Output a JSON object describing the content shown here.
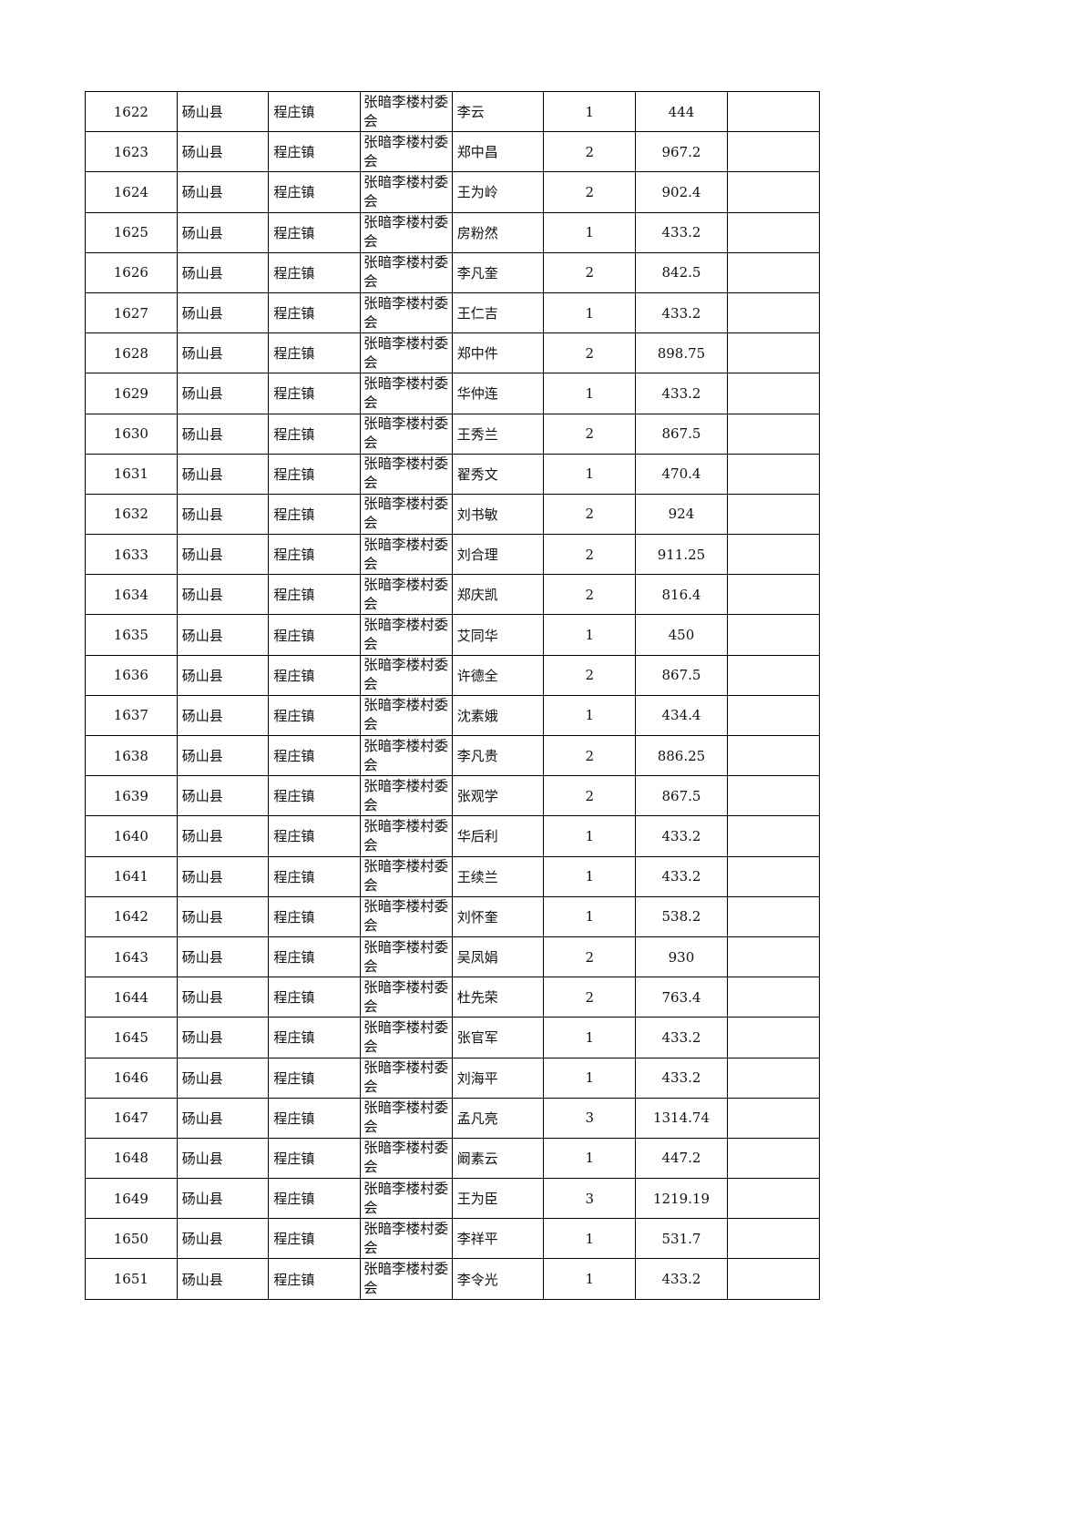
{
  "table": {
    "rows": [
      {
        "no": "1622",
        "county": "砀山县",
        "town": "程庄镇",
        "village": "张暗李楼村委会",
        "name": "李云",
        "count": "1",
        "amount": "444",
        "note": ""
      },
      {
        "no": "1623",
        "county": "砀山县",
        "town": "程庄镇",
        "village": "张暗李楼村委会",
        "name": "郑中昌",
        "count": "2",
        "amount": "967.2",
        "note": ""
      },
      {
        "no": "1624",
        "county": "砀山县",
        "town": "程庄镇",
        "village": "张暗李楼村委会",
        "name": "王为岭",
        "count": "2",
        "amount": "902.4",
        "note": ""
      },
      {
        "no": "1625",
        "county": "砀山县",
        "town": "程庄镇",
        "village": "张暗李楼村委会",
        "name": "房粉然",
        "count": "1",
        "amount": "433.2",
        "note": ""
      },
      {
        "no": "1626",
        "county": "砀山县",
        "town": "程庄镇",
        "village": "张暗李楼村委会",
        "name": "李凡奎",
        "count": "2",
        "amount": "842.5",
        "note": ""
      },
      {
        "no": "1627",
        "county": "砀山县",
        "town": "程庄镇",
        "village": "张暗李楼村委会",
        "name": "王仁吉",
        "count": "1",
        "amount": "433.2",
        "note": ""
      },
      {
        "no": "1628",
        "county": "砀山县",
        "town": "程庄镇",
        "village": "张暗李楼村委会",
        "name": "郑中件",
        "count": "2",
        "amount": "898.75",
        "note": ""
      },
      {
        "no": "1629",
        "county": "砀山县",
        "town": "程庄镇",
        "village": "张暗李楼村委会",
        "name": "华仲连",
        "count": "1",
        "amount": "433.2",
        "note": ""
      },
      {
        "no": "1630",
        "county": "砀山县",
        "town": "程庄镇",
        "village": "张暗李楼村委会",
        "name": "王秀兰",
        "count": "2",
        "amount": "867.5",
        "note": ""
      },
      {
        "no": "1631",
        "county": "砀山县",
        "town": "程庄镇",
        "village": "张暗李楼村委会",
        "name": "翟秀文",
        "count": "1",
        "amount": "470.4",
        "note": ""
      },
      {
        "no": "1632",
        "county": "砀山县",
        "town": "程庄镇",
        "village": "张暗李楼村委会",
        "name": "刘书敏",
        "count": "2",
        "amount": "924",
        "note": ""
      },
      {
        "no": "1633",
        "county": "砀山县",
        "town": "程庄镇",
        "village": "张暗李楼村委会",
        "name": "刘合理",
        "count": "2",
        "amount": "911.25",
        "note": ""
      },
      {
        "no": "1634",
        "county": "砀山县",
        "town": "程庄镇",
        "village": "张暗李楼村委会",
        "name": "郑庆凯",
        "count": "2",
        "amount": "816.4",
        "note": ""
      },
      {
        "no": "1635",
        "county": "砀山县",
        "town": "程庄镇",
        "village": "张暗李楼村委会",
        "name": "艾同华",
        "count": "1",
        "amount": "450",
        "note": ""
      },
      {
        "no": "1636",
        "county": "砀山县",
        "town": "程庄镇",
        "village": "张暗李楼村委会",
        "name": "许德全",
        "count": "2",
        "amount": "867.5",
        "note": ""
      },
      {
        "no": "1637",
        "county": "砀山县",
        "town": "程庄镇",
        "village": "张暗李楼村委会",
        "name": "沈素娥",
        "count": "1",
        "amount": "434.4",
        "note": ""
      },
      {
        "no": "1638",
        "county": "砀山县",
        "town": "程庄镇",
        "village": "张暗李楼村委会",
        "name": "李凡贵",
        "count": "2",
        "amount": "886.25",
        "note": ""
      },
      {
        "no": "1639",
        "county": "砀山县",
        "town": "程庄镇",
        "village": "张暗李楼村委会",
        "name": "张观学",
        "count": "2",
        "amount": "867.5",
        "note": ""
      },
      {
        "no": "1640",
        "county": "砀山县",
        "town": "程庄镇",
        "village": "张暗李楼村委会",
        "name": "华后利",
        "count": "1",
        "amount": "433.2",
        "note": ""
      },
      {
        "no": "1641",
        "county": "砀山县",
        "town": "程庄镇",
        "village": "张暗李楼村委会",
        "name": "王续兰",
        "count": "1",
        "amount": "433.2",
        "note": ""
      },
      {
        "no": "1642",
        "county": "砀山县",
        "town": "程庄镇",
        "village": "张暗李楼村委会",
        "name": "刘怀奎",
        "count": "1",
        "amount": "538.2",
        "note": ""
      },
      {
        "no": "1643",
        "county": "砀山县",
        "town": "程庄镇",
        "village": "张暗李楼村委会",
        "name": "吴凤娟",
        "count": "2",
        "amount": "930",
        "note": ""
      },
      {
        "no": "1644",
        "county": "砀山县",
        "town": "程庄镇",
        "village": "张暗李楼村委会",
        "name": "杜先荣",
        "count": "2",
        "amount": "763.4",
        "note": ""
      },
      {
        "no": "1645",
        "county": "砀山县",
        "town": "程庄镇",
        "village": "张暗李楼村委会",
        "name": "张官军",
        "count": "1",
        "amount": "433.2",
        "note": ""
      },
      {
        "no": "1646",
        "county": "砀山县",
        "town": "程庄镇",
        "village": "张暗李楼村委会",
        "name": "刘海平",
        "count": "1",
        "amount": "433.2",
        "note": ""
      },
      {
        "no": "1647",
        "county": "砀山县",
        "town": "程庄镇",
        "village": "张暗李楼村委会",
        "name": "孟凡亮",
        "count": "3",
        "amount": "1314.74",
        "note": ""
      },
      {
        "no": "1648",
        "county": "砀山县",
        "town": "程庄镇",
        "village": "张暗李楼村委会",
        "name": "阚素云",
        "count": "1",
        "amount": "447.2",
        "note": ""
      },
      {
        "no": "1649",
        "county": "砀山县",
        "town": "程庄镇",
        "village": "张暗李楼村委会",
        "name": "王为臣",
        "count": "3",
        "amount": "1219.19",
        "note": ""
      },
      {
        "no": "1650",
        "county": "砀山县",
        "town": "程庄镇",
        "village": "张暗李楼村委会",
        "name": "李祥平",
        "count": "1",
        "amount": "531.7",
        "note": ""
      },
      {
        "no": "1651",
        "county": "砀山县",
        "town": "程庄镇",
        "village": "张暗李楼村委会",
        "name": "李令光",
        "count": "1",
        "amount": "433.2",
        "note": ""
      }
    ]
  }
}
